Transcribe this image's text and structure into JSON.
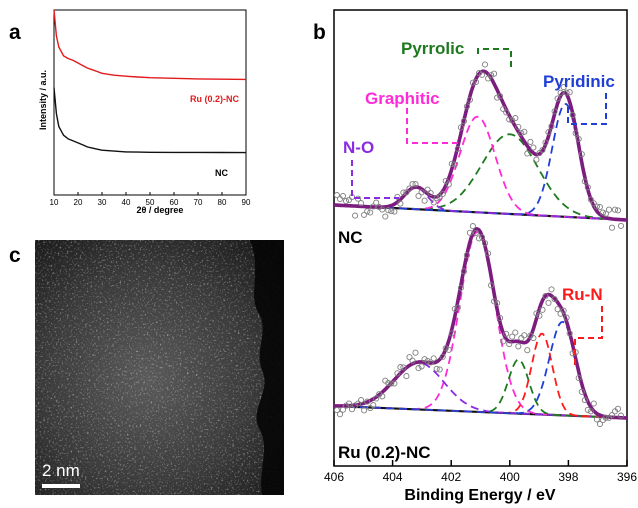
{
  "panel_labels": {
    "a": "a",
    "b": "b",
    "c": "c"
  },
  "scale_bar": {
    "label": "2 nm"
  },
  "colors": {
    "ru": "#e31a1c",
    "nc": "#111111",
    "fit": "#7b1c7e",
    "pyrrolic": "#1f7a1f",
    "graphitic": "#ff2bd6",
    "pyridinic": "#1f3fd6",
    "no": "#8a2be2",
    "run": "#ff1a1a",
    "baseline": "#111111",
    "points": "#7f7f7f"
  },
  "chart_data": [
    {
      "type": "line",
      "panel": "a",
      "title": "",
      "xlabel": "2θ / degree",
      "ylabel": "Intensity / a.u.",
      "xlim": [
        10,
        90
      ],
      "ticks": [
        10,
        20,
        30,
        40,
        50,
        60,
        70,
        80,
        90
      ],
      "tick_labels": [
        "10",
        "20",
        "30",
        "40",
        "50",
        "60",
        "70",
        "80",
        "90"
      ],
      "x": [
        10,
        11,
        12,
        14,
        16,
        18,
        20,
        22,
        24,
        26,
        28,
        30,
        35,
        40,
        45,
        50,
        60,
        70,
        80,
        90
      ],
      "series": [
        {
          "name": "Ru (0.2)-NC",
          "values": [
            1.0,
            0.86,
            0.8,
            0.755,
            0.74,
            0.73,
            0.715,
            0.7,
            0.685,
            0.675,
            0.665,
            0.655,
            0.645,
            0.64,
            0.637,
            0.634,
            0.632,
            0.63,
            0.629,
            0.628
          ]
        },
        {
          "name": "NC",
          "values": [
            0.58,
            0.44,
            0.37,
            0.32,
            0.3,
            0.29,
            0.28,
            0.27,
            0.26,
            0.255,
            0.25,
            0.245,
            0.24,
            0.235,
            0.233,
            0.231,
            0.229,
            0.228,
            0.227,
            0.226
          ]
        }
      ]
    },
    {
      "type": "line",
      "panel": "b",
      "title": "",
      "xlabel": "Binding Energy / eV",
      "ylabel": "",
      "xlim": [
        406,
        396
      ],
      "ticks": [
        406,
        404,
        402,
        400,
        398,
        396
      ],
      "tick_labels": [
        "406",
        "404",
        "402",
        "400",
        "398",
        "396"
      ],
      "groups": [
        {
          "label": "NC",
          "components": [
            {
              "name": "Pyrrolic",
              "center": 400.0,
              "height": 0.55,
              "sigma": 0.95
            },
            {
              "name": "Graphitic",
              "center": 401.1,
              "height": 0.66,
              "sigma": 0.6
            },
            {
              "name": "Pyridinic",
              "center": 398.1,
              "height": 0.78,
              "sigma": 0.45
            },
            {
              "name": "N-O",
              "center": 403.2,
              "height": 0.15,
              "sigma": 0.4
            }
          ]
        },
        {
          "label": "Ru (0.2)-NC",
          "components": [
            {
              "name": "Graphitic",
              "center": 401.1,
              "height": 1.0,
              "sigma": 0.6
            },
            {
              "name": "N-O",
              "center": 403.1,
              "height": 0.26,
              "sigma": 0.85
            },
            {
              "name": "Pyrrolic",
              "center": 399.7,
              "height": 0.3,
              "sigma": 0.35
            },
            {
              "name": "Ru-N",
              "center": 398.9,
              "height": 0.45,
              "sigma": 0.35
            },
            {
              "name": "Pyridinic",
              "center": 398.2,
              "height": 0.52,
              "sigma": 0.45
            }
          ]
        }
      ],
      "annotations": [
        "Pyrrolic",
        "Graphitic",
        "Pyridinic",
        "N-O",
        "Ru-N"
      ]
    }
  ]
}
